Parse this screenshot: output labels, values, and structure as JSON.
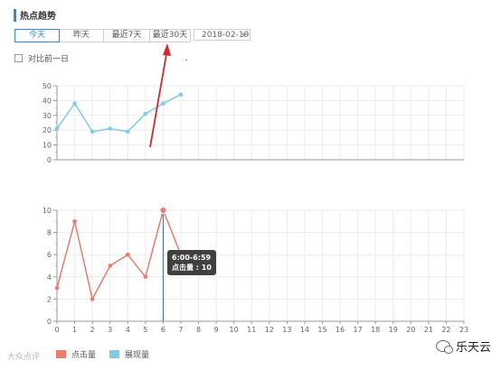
{
  "header": {
    "title": "热点趋势"
  },
  "tabs": [
    {
      "label": "今天",
      "active": true
    },
    {
      "label": "昨天",
      "active": false
    },
    {
      "label": "最近7天",
      "active": false
    },
    {
      "label": "最近30天",
      "active": false
    }
  ],
  "date_select": {
    "value": "2018-02-19"
  },
  "compare": {
    "label": "对比前一日",
    "checked": false
  },
  "tooltip": {
    "line1": "6:00-6:59",
    "line2": "点击量 : 10"
  },
  "legend": [
    {
      "name": "点击量",
      "color": "#ee7a6a"
    },
    {
      "name": "展现量",
      "color": "#7fcbe8"
    }
  ],
  "watermark_left": "大众点评",
  "watermark_right": "乐天云",
  "annotation": {
    "type": "red-arrow",
    "color": "#d9262d",
    "points_to": "最近30天"
  },
  "chart_data": [
    {
      "type": "line",
      "title": "",
      "x": [
        0,
        1,
        2,
        3,
        4,
        5,
        6,
        7
      ],
      "xticks": [
        0,
        1,
        2,
        3,
        4,
        5,
        6,
        7,
        8,
        9,
        10,
        11,
        12,
        13,
        14,
        15,
        16,
        17,
        18,
        19,
        20,
        21,
        22,
        23
      ],
      "xlim": [
        0,
        23
      ],
      "ylim": [
        0,
        50
      ],
      "yticks": [
        0,
        10,
        20,
        30,
        40,
        50
      ],
      "grid": true,
      "series": [
        {
          "name": "展现量",
          "color": "#7fcbe8",
          "values": [
            21,
            38,
            19,
            21,
            19,
            31,
            38,
            44
          ]
        }
      ]
    },
    {
      "type": "line",
      "title": "",
      "x": [
        0,
        1,
        2,
        3,
        4,
        5,
        6,
        7
      ],
      "xticks": [
        0,
        1,
        2,
        3,
        4,
        5,
        6,
        7,
        8,
        9,
        10,
        11,
        12,
        13,
        14,
        15,
        16,
        17,
        18,
        19,
        20,
        21,
        22,
        23
      ],
      "xlim": [
        0,
        23
      ],
      "ylim": [
        0,
        10
      ],
      "yticks": [
        0,
        2,
        4,
        6,
        8,
        10
      ],
      "grid": true,
      "series": [
        {
          "name": "点击量",
          "color": "#ee7a6a",
          "values": [
            3,
            9,
            2,
            5,
            6,
            4,
            10,
            6
          ]
        }
      ],
      "highlight": {
        "x": 6,
        "value": 10
      }
    }
  ]
}
